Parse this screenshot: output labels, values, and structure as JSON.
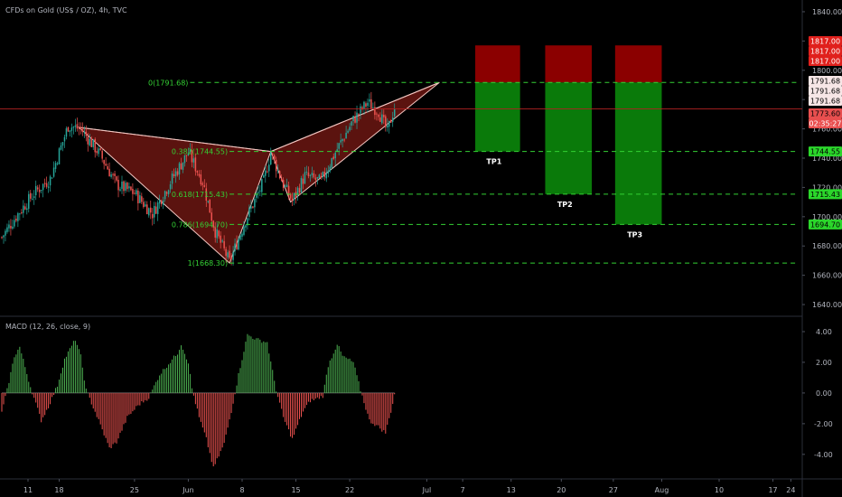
{
  "header": {
    "title": "CFDs on Gold (US$ / OZ), 4h, TVC",
    "macd_title": "MACD (12, 26, close, 9)"
  },
  "colors": {
    "up": "#26a69a",
    "down": "#ef5350",
    "fib": "#34d134",
    "pattern_fill": "#7a1a14",
    "pattern_line": "#f2c5c0",
    "stop_zone": "#8b0000",
    "target_zone": "#0a7a0a",
    "price_line": "#b22222"
  },
  "chart_data": [
    {
      "type": "candlestick",
      "title": "CFDs on Gold (US$ / OZ), 4h, TVC",
      "xlabel": "",
      "ylabel": "",
      "ylim": [
        1632,
        1848
      ],
      "x_ticks": [
        {
          "label": "11",
          "bar": -10
        },
        {
          "label": "18",
          "bar": 32
        },
        {
          "label": "25",
          "bar": 74
        },
        {
          "label": "Jun",
          "bar": 104
        },
        {
          "label": "8",
          "bar": 134
        },
        {
          "label": "15",
          "bar": 164
        },
        {
          "label": "22",
          "bar": 194
        },
        {
          "label": "Jul",
          "bar": 237
        },
        {
          "label": "7",
          "bar": 257
        },
        {
          "label": "13",
          "bar": 284
        },
        {
          "label": "20",
          "bar": 312
        },
        {
          "label": "27",
          "bar": 341
        },
        {
          "label": "Aug",
          "bar": 368
        },
        {
          "label": "10",
          "bar": 400
        },
        {
          "label": "17",
          "bar": 430
        },
        {
          "label": "24",
          "bar": 440
        }
      ],
      "y_ticks": [
        1840,
        1820,
        1800,
        1780,
        1760,
        1740,
        1720,
        1700,
        1680,
        1660,
        1640
      ],
      "anchors": [
        {
          "bar": 0,
          "price": 1686
        },
        {
          "bar": 9,
          "price": 1702
        },
        {
          "bar": 18,
          "price": 1716
        },
        {
          "bar": 27,
          "price": 1726
        },
        {
          "bar": 37,
          "price": 1762
        },
        {
          "bar": 44,
          "price": 1760
        },
        {
          "bar": 55,
          "price": 1742
        },
        {
          "bar": 64,
          "price": 1722
        },
        {
          "bar": 74,
          "price": 1716
        },
        {
          "bar": 84,
          "price": 1702
        },
        {
          "bar": 95,
          "price": 1726
        },
        {
          "bar": 104,
          "price": 1744
        },
        {
          "bar": 112,
          "price": 1724
        },
        {
          "bar": 119,
          "price": 1690
        },
        {
          "bar": 127,
          "price": 1669
        },
        {
          "bar": 136,
          "price": 1698
        },
        {
          "bar": 146,
          "price": 1724
        },
        {
          "bar": 150,
          "price": 1744
        },
        {
          "bar": 157,
          "price": 1722
        },
        {
          "bar": 162,
          "price": 1711
        },
        {
          "bar": 169,
          "price": 1728
        },
        {
          "bar": 178,
          "price": 1724
        },
        {
          "bar": 186,
          "price": 1744
        },
        {
          "bar": 196,
          "price": 1766
        },
        {
          "bar": 204,
          "price": 1778
        },
        {
          "bar": 210,
          "price": 1772
        },
        {
          "bar": 215,
          "price": 1758
        },
        {
          "bar": 219,
          "price": 1775
        }
      ],
      "current_price": 1773.6,
      "harmonic_pattern": [
        {
          "bar": 43,
          "price": 1761
        },
        {
          "bar": 127,
          "price": 1668.3
        },
        {
          "bar": 150,
          "price": 1744.55
        },
        {
          "bar": 161,
          "price": 1710
        },
        {
          "bar": 244,
          "price": 1791.68
        }
      ],
      "fib_levels": [
        {
          "label": "0(1791.68)",
          "price": 1791.68
        },
        {
          "label": "0.382(1744.55)",
          "price": 1744.55
        },
        {
          "label": "0.618(1715.43)",
          "price": 1715.43
        },
        {
          "label": "0.786(1694.70)",
          "price": 1694.7
        },
        {
          "label": "1(1668.30)",
          "price": 1668.3
        }
      ],
      "fib_line_end_bar": 444,
      "trade_boxes": [
        {
          "label": "TP1",
          "x_start": 264,
          "x_end": 289,
          "entry": 1791.68,
          "stop": 1817.0,
          "target": 1744.55
        },
        {
          "label": "TP2",
          "x_start": 303,
          "x_end": 329,
          "entry": 1791.68,
          "stop": 1817.0,
          "target": 1715.43
        },
        {
          "label": "TP3",
          "x_start": 342,
          "x_end": 368,
          "entry": 1791.68,
          "stop": 1817.0,
          "target": 1694.7
        }
      ],
      "price_labels": [
        {
          "text": "1817.00",
          "price": 1817.0,
          "bg": "#e0201c",
          "fg": "#ffffff"
        },
        {
          "text": "1817.00",
          "price": 1817.0,
          "bg": "#e0201c",
          "fg": "#ffffff"
        },
        {
          "text": "1817.00",
          "price": 1817.0,
          "bg": "#e0201c",
          "fg": "#ffffff"
        },
        {
          "text": "1791.68",
          "price": 1791.68,
          "bg": "#f7e6e6",
          "fg": "#000000"
        },
        {
          "text": "1791.68",
          "price": 1791.68,
          "bg": "#f7e6e6",
          "fg": "#000000"
        },
        {
          "text": "1791.68",
          "price": 1791.68,
          "bg": "#f7e6e6",
          "fg": "#000000"
        },
        {
          "text": "1773.60",
          "price": 1773.6,
          "bg": "#e94f4f",
          "fg": "#000000"
        },
        {
          "text": "02:35:27",
          "price": 1773.6,
          "bg": "#e94f4f",
          "fg": "#ffffff"
        },
        {
          "text": "1744.55",
          "price": 1744.55,
          "bg": "#2bd72b",
          "fg": "#000000"
        },
        {
          "text": "1715.43",
          "price": 1715.43,
          "bg": "#2bd72b",
          "fg": "#000000"
        },
        {
          "text": "1694.70",
          "price": 1694.7,
          "bg": "#2bd72b",
          "fg": "#000000"
        }
      ]
    },
    {
      "type": "histogram",
      "title": "MACD (12, 26, close, 9)",
      "xlabel": "",
      "ylabel": "",
      "ylim": [
        -5.6,
        5.0
      ],
      "y_ticks": [
        "4.00",
        "2.00",
        "0.00",
        "-2.00",
        "-4.00"
      ],
      "anchors": [
        {
          "bar": 0,
          "value": -1.3
        },
        {
          "bar": 3,
          "value": 0.2
        },
        {
          "bar": 7,
          "value": 2.4
        },
        {
          "bar": 10,
          "value": 3.0
        },
        {
          "bar": 16,
          "value": 0.4
        },
        {
          "bar": 22,
          "value": -1.8
        },
        {
          "bar": 26,
          "value": -0.9
        },
        {
          "bar": 31,
          "value": 0.5
        },
        {
          "bar": 35,
          "value": 2.2
        },
        {
          "bar": 41,
          "value": 3.5
        },
        {
          "bar": 44,
          "value": 2.4
        },
        {
          "bar": 47,
          "value": 0.2
        },
        {
          "bar": 54,
          "value": -1.8
        },
        {
          "bar": 60,
          "value": -3.6
        },
        {
          "bar": 64,
          "value": -3.2
        },
        {
          "bar": 70,
          "value": -1.6
        },
        {
          "bar": 76,
          "value": -0.8
        },
        {
          "bar": 82,
          "value": -0.3
        },
        {
          "bar": 88,
          "value": 1.2
        },
        {
          "bar": 93,
          "value": 1.9
        },
        {
          "bar": 98,
          "value": 2.6
        },
        {
          "bar": 100,
          "value": 3.2
        },
        {
          "bar": 104,
          "value": 2.0
        },
        {
          "bar": 106,
          "value": 0.3
        },
        {
          "bar": 110,
          "value": -1.6
        },
        {
          "bar": 114,
          "value": -3.0
        },
        {
          "bar": 118,
          "value": -4.9
        },
        {
          "bar": 124,
          "value": -3.3
        },
        {
          "bar": 128,
          "value": -1.2
        },
        {
          "bar": 132,
          "value": 1.2
        },
        {
          "bar": 137,
          "value": 3.8
        },
        {
          "bar": 142,
          "value": 3.5
        },
        {
          "bar": 148,
          "value": 3.3
        },
        {
          "bar": 150,
          "value": 2.0
        },
        {
          "bar": 153,
          "value": 0.2
        },
        {
          "bar": 157,
          "value": -1.6
        },
        {
          "bar": 162,
          "value": -3.0
        },
        {
          "bar": 168,
          "value": -1.2
        },
        {
          "bar": 172,
          "value": -0.5
        },
        {
          "bar": 175,
          "value": -0.4
        },
        {
          "bar": 179,
          "value": -0.2
        },
        {
          "bar": 182,
          "value": 1.8
        },
        {
          "bar": 187,
          "value": 3.2
        },
        {
          "bar": 190,
          "value": 2.4
        },
        {
          "bar": 196,
          "value": 2.0
        },
        {
          "bar": 200,
          "value": 0.2
        },
        {
          "bar": 205,
          "value": -1.8
        },
        {
          "bar": 210,
          "value": -2.2
        },
        {
          "bar": 214,
          "value": -2.6
        },
        {
          "bar": 217,
          "value": -1.2
        },
        {
          "bar": 219,
          "value": -0.1
        }
      ]
    }
  ]
}
